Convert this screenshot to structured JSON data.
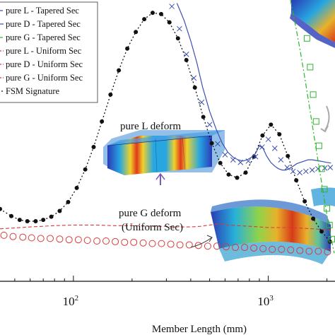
{
  "chart_data": {
    "type": "scatter",
    "title": "",
    "xlabel": "Member Length (mm)",
    "ylabel": "",
    "x_scale": "log",
    "xlim": [
      42,
      2200
    ],
    "ylim": [
      0,
      440
    ],
    "x_ticks": [
      {
        "value": 100,
        "base": "10",
        "exp": "2"
      },
      {
        "value": 1000,
        "base": "10",
        "exp": "3"
      }
    ],
    "legend": {
      "position": "top-left",
      "entries": [
        {
          "label": "pure L - Tapered Sec",
          "style": "dash-dot-blue",
          "color": "#3a4fb0"
        },
        {
          "label": "pure D - Tapered Sec",
          "style": "solid-blue",
          "color": "#3a4fb0"
        },
        {
          "label": "pure G - Tapered Sec",
          "style": "dash-dot-green",
          "color": "#2db52d"
        },
        {
          "label": "pure L - Uniform Sec",
          "style": "dashed-red",
          "color": "#d83a3a"
        },
        {
          "label": "pure D - Uniform Sec",
          "style": "dashed-red",
          "color": "#d83a3a"
        },
        {
          "label": "pure G - Uniform Sec",
          "style": "dashed-red",
          "color": "#d83a3a"
        },
        {
          "label": "FSM Signature",
          "style": "dotted-black",
          "color": "#111111"
        }
      ]
    },
    "series": [
      {
        "name": "FSM Signature",
        "kind": "dotted-line-markers",
        "color": "#111111",
        "x": [
          42,
          48,
          53,
          58,
          64,
          70,
          77,
          85,
          94,
          104,
          115,
          127,
          140,
          155,
          171,
          189,
          209,
          231,
          255,
          282,
          311,
          344,
          380,
          420,
          464,
          513,
          567,
          626,
          692,
          765,
          845,
          934,
          1032,
          1140,
          1260,
          1392,
          1538,
          1700,
          1878,
          2075
        ],
        "y": [
          113,
          102,
          96,
          94,
          94,
          96,
          101,
          110,
          124,
          146,
          175,
          210,
          250,
          292,
          330,
          364,
          390,
          410,
          420,
          418,
          405,
          380,
          346,
          303,
          257,
          216,
          185,
          167,
          162,
          170,
          195,
          228,
          245,
          230,
          196,
          158,
          125,
          98,
          78,
          62
        ]
      },
      {
        "name": "pure D - Tapered Sec",
        "kind": "line",
        "color": "#3a4fb0",
        "x": [
          340,
          370,
          400,
          430,
          460,
          500,
          540,
          580,
          620,
          660,
          700,
          740,
          780,
          820,
          860,
          900,
          940,
          980,
          1030,
          1080,
          1130,
          1180,
          1230,
          1280,
          1340,
          1400,
          1460,
          1530,
          1600,
          1680,
          1760,
          1840,
          1920,
          2000,
          2100
        ],
        "y": [
          435,
          408,
          376,
          342,
          304,
          266,
          238,
          216,
          202,
          194,
          190,
          188,
          190,
          194,
          200,
          212,
          208,
          196,
          186,
          180,
          176,
          174,
          174,
          176,
          180,
          184,
          186,
          188,
          190,
          190,
          189,
          188,
          187,
          186,
          185
        ]
      },
      {
        "name": "pure L - Tapered Sec",
        "kind": "markers-x",
        "color": "#3a4fb0",
        "x": [
          320,
          350,
          380,
          415,
          455,
          500,
          550,
          600,
          660,
          720,
          790,
          860,
          930,
          1000,
          1080,
          1160,
          1250,
          1340,
          1450,
          1560,
          1680,
          1800,
          1950,
          2080
        ],
        "y": [
          430,
          395,
          355,
          318,
          280,
          245,
          215,
          198,
          190,
          186,
          188,
          195,
          210,
          222,
          208,
          190,
          178,
          172,
          170,
          172,
          174,
          176,
          177,
          178
        ]
      },
      {
        "name": "pure G - Tapered Sec",
        "kind": "dash-dot-line",
        "color": "#2db52d",
        "x": [
          1300,
          1380,
          1460,
          1540,
          1620,
          1700,
          1780,
          1860,
          1940,
          2020,
          2100,
          2180
        ],
        "y": [
          440,
          400,
          360,
          318,
          276,
          236,
          198,
          162,
          128,
          96,
          68,
          44
        ]
      },
      {
        "name": "pure G - Tapered Sec squares",
        "kind": "markers-square",
        "color": "#2db52d",
        "x": [
          1580,
          1640,
          1700,
          1760,
          1820,
          1880,
          1940,
          2000,
          2060,
          2120
        ],
        "y": [
          380,
          335,
          292,
          250,
          212,
          176,
          144,
          114,
          88,
          66
        ]
      },
      {
        "name": "pure L - Uniform Sec",
        "kind": "dashed-line",
        "color": "#d83a3a",
        "x": [
          42,
          60,
          80,
          100,
          130,
          160,
          200,
          250,
          300,
          350,
          400,
          450,
          500,
          560,
          620,
          700,
          800,
          900,
          1000,
          1150,
          1300,
          1500,
          1700,
          1900,
          2100
        ],
        "y": [
          82,
          85,
          87,
          88,
          88,
          87,
          87,
          86,
          86,
          85,
          85,
          86,
          88,
          90,
          88,
          87,
          86,
          85,
          84,
          84,
          84,
          83,
          82,
          81,
          80
        ]
      },
      {
        "name": "pure D - Uniform Sec",
        "kind": "markers-circle",
        "color": "#d83a3a",
        "x": [
          44,
          49,
          55,
          61,
          68,
          76,
          85,
          95,
          106,
          118,
          132,
          147,
          164,
          183,
          204,
          228,
          254,
          283,
          316,
          352,
          393,
          438,
          489,
          545,
          608,
          678,
          756,
          843,
          940,
          1048,
          1169,
          1303,
          1453,
          1620,
          1806,
          2014
        ],
        "y": [
          72,
          70,
          69,
          68,
          67,
          67,
          66,
          65,
          65,
          64,
          63,
          63,
          62,
          61,
          61,
          60,
          59,
          59,
          58,
          57,
          57,
          56,
          55,
          55,
          54,
          53,
          53,
          52,
          51,
          50,
          50,
          49,
          48,
          47,
          47,
          46
        ]
      }
    ],
    "annotations": [
      {
        "id": "pure-l-deform",
        "text": "pure L deform"
      },
      {
        "id": "pure-g-deform",
        "lines": [
          "pure G deform",
          "(Uniform Sec)"
        ]
      }
    ]
  }
}
